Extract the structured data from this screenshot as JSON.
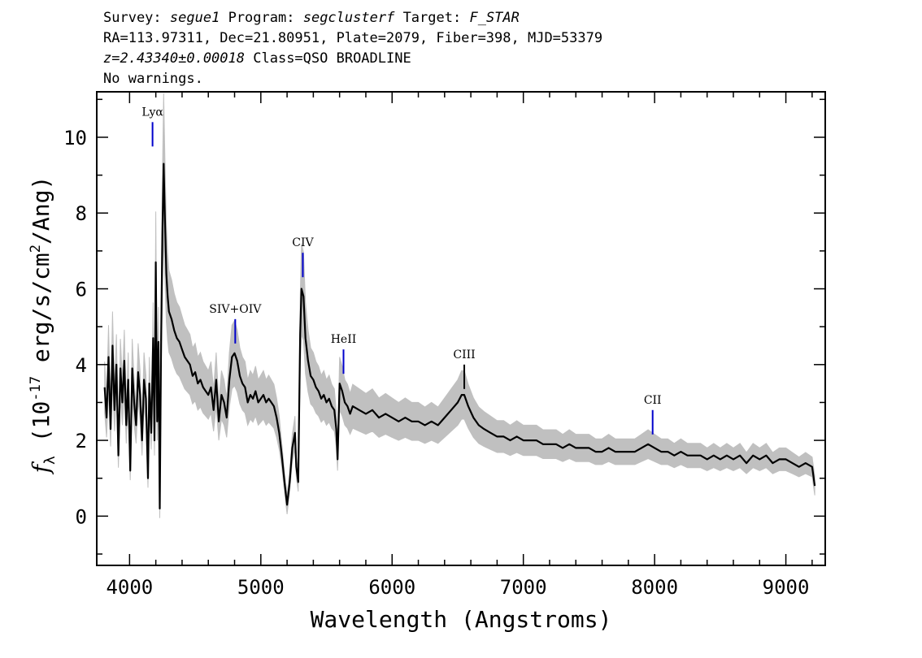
{
  "header": {
    "line1": {
      "survey_label": "Survey:",
      "survey": "segue1",
      "program_label": "Program:",
      "program": "segclusterf",
      "target_label": "Target:",
      "target": "F_STAR"
    },
    "line2": "RA=113.97311, Dec=21.80951, Plate=2079, Fiber=398, MJD=53379",
    "line3": {
      "redshift": "z=2.43340±0.00018",
      "class": "Class=QSO BROADLINE"
    },
    "line4": "No warnings."
  },
  "chart_data": {
    "type": "line",
    "xlabel": "Wavelength (Angstroms)",
    "ylabel": "f_λ (10^-17 erg/s/cm^2/Ang)",
    "xlim": [
      3750,
      9300
    ],
    "ylim": [
      -1.3,
      11.2
    ],
    "xticks": [
      4000,
      5000,
      6000,
      7000,
      8000,
      9000
    ],
    "yticks": [
      0,
      2,
      4,
      6,
      8,
      10
    ],
    "grid": false,
    "series": [
      {
        "role": "flux",
        "color": "#000000",
        "points": [
          [
            3810,
            3.4
          ],
          [
            3825,
            2.6
          ],
          [
            3840,
            4.2
          ],
          [
            3855,
            2.3
          ],
          [
            3870,
            4.5
          ],
          [
            3885,
            2.8
          ],
          [
            3900,
            4.0
          ],
          [
            3915,
            1.6
          ],
          [
            3930,
            3.9
          ],
          [
            3945,
            3.0
          ],
          [
            3960,
            4.1
          ],
          [
            3975,
            2.4
          ],
          [
            3990,
            3.6
          ],
          [
            4005,
            1.2
          ],
          [
            4020,
            3.9
          ],
          [
            4035,
            3.0
          ],
          [
            4050,
            2.4
          ],
          [
            4065,
            3.8
          ],
          [
            4080,
            3.2
          ],
          [
            4095,
            2.0
          ],
          [
            4110,
            3.6
          ],
          [
            4125,
            3.1
          ],
          [
            4140,
            1.0
          ],
          [
            4150,
            3.5
          ],
          [
            4165,
            2.2
          ],
          [
            4180,
            4.7
          ],
          [
            4190,
            2.0
          ],
          [
            4200,
            6.7
          ],
          [
            4210,
            2.5
          ],
          [
            4220,
            4.6
          ],
          [
            4230,
            0.2
          ],
          [
            4240,
            4.5
          ],
          [
            4250,
            7.4
          ],
          [
            4260,
            9.3
          ],
          [
            4270,
            7.8
          ],
          [
            4280,
            6.4
          ],
          [
            4290,
            5.8
          ],
          [
            4300,
            5.4
          ],
          [
            4320,
            5.2
          ],
          [
            4340,
            4.9
          ],
          [
            4360,
            4.7
          ],
          [
            4380,
            4.6
          ],
          [
            4400,
            4.4
          ],
          [
            4420,
            4.2
          ],
          [
            4440,
            4.1
          ],
          [
            4460,
            4.0
          ],
          [
            4480,
            3.7
          ],
          [
            4500,
            3.8
          ],
          [
            4520,
            3.5
          ],
          [
            4540,
            3.6
          ],
          [
            4560,
            3.4
          ],
          [
            4580,
            3.3
          ],
          [
            4600,
            3.2
          ],
          [
            4620,
            3.4
          ],
          [
            4640,
            2.8
          ],
          [
            4660,
            3.6
          ],
          [
            4680,
            2.5
          ],
          [
            4700,
            3.2
          ],
          [
            4720,
            3.0
          ],
          [
            4740,
            2.6
          ],
          [
            4760,
            3.6
          ],
          [
            4780,
            4.2
          ],
          [
            4800,
            4.3
          ],
          [
            4820,
            4.1
          ],
          [
            4840,
            3.7
          ],
          [
            4860,
            3.5
          ],
          [
            4880,
            3.4
          ],
          [
            4900,
            3.0
          ],
          [
            4920,
            3.2
          ],
          [
            4940,
            3.1
          ],
          [
            4960,
            3.3
          ],
          [
            4980,
            3.0
          ],
          [
            5000,
            3.1
          ],
          [
            5020,
            3.2
          ],
          [
            5040,
            3.0
          ],
          [
            5060,
            3.1
          ],
          [
            5080,
            3.0
          ],
          [
            5100,
            2.9
          ],
          [
            5120,
            2.6
          ],
          [
            5140,
            2.2
          ],
          [
            5160,
            1.6
          ],
          [
            5180,
            0.9
          ],
          [
            5200,
            0.3
          ],
          [
            5220,
            0.9
          ],
          [
            5240,
            1.8
          ],
          [
            5260,
            2.2
          ],
          [
            5270,
            1.3
          ],
          [
            5285,
            0.9
          ],
          [
            5300,
            4.8
          ],
          [
            5310,
            6.0
          ],
          [
            5325,
            5.8
          ],
          [
            5340,
            4.7
          ],
          [
            5360,
            4.1
          ],
          [
            5380,
            3.7
          ],
          [
            5400,
            3.6
          ],
          [
            5420,
            3.4
          ],
          [
            5440,
            3.3
          ],
          [
            5460,
            3.1
          ],
          [
            5480,
            3.2
          ],
          [
            5500,
            3.0
          ],
          [
            5520,
            3.1
          ],
          [
            5540,
            2.9
          ],
          [
            5560,
            2.8
          ],
          [
            5575,
            2.3
          ],
          [
            5585,
            1.5
          ],
          [
            5600,
            3.5
          ],
          [
            5620,
            3.3
          ],
          [
            5640,
            3.0
          ],
          [
            5660,
            2.9
          ],
          [
            5680,
            2.7
          ],
          [
            5700,
            2.9
          ],
          [
            5750,
            2.8
          ],
          [
            5800,
            2.7
          ],
          [
            5850,
            2.8
          ],
          [
            5900,
            2.6
          ],
          [
            5950,
            2.7
          ],
          [
            6000,
            2.6
          ],
          [
            6050,
            2.5
          ],
          [
            6100,
            2.6
          ],
          [
            6150,
            2.5
          ],
          [
            6200,
            2.5
          ],
          [
            6250,
            2.4
          ],
          [
            6300,
            2.5
          ],
          [
            6350,
            2.4
          ],
          [
            6400,
            2.6
          ],
          [
            6450,
            2.8
          ],
          [
            6500,
            3.0
          ],
          [
            6530,
            3.2
          ],
          [
            6550,
            3.2
          ],
          [
            6580,
            2.9
          ],
          [
            6620,
            2.6
          ],
          [
            6660,
            2.4
          ],
          [
            6700,
            2.3
          ],
          [
            6750,
            2.2
          ],
          [
            6800,
            2.1
          ],
          [
            6850,
            2.1
          ],
          [
            6900,
            2.0
          ],
          [
            6950,
            2.1
          ],
          [
            7000,
            2.0
          ],
          [
            7050,
            2.0
          ],
          [
            7100,
            2.0
          ],
          [
            7150,
            1.9
          ],
          [
            7200,
            1.9
          ],
          [
            7250,
            1.9
          ],
          [
            7300,
            1.8
          ],
          [
            7350,
            1.9
          ],
          [
            7400,
            1.8
          ],
          [
            7450,
            1.8
          ],
          [
            7500,
            1.8
          ],
          [
            7550,
            1.7
          ],
          [
            7600,
            1.7
          ],
          [
            7650,
            1.8
          ],
          [
            7700,
            1.7
          ],
          [
            7750,
            1.7
          ],
          [
            7800,
            1.7
          ],
          [
            7850,
            1.7
          ],
          [
            7900,
            1.8
          ],
          [
            7950,
            1.9
          ],
          [
            8000,
            1.8
          ],
          [
            8050,
            1.7
          ],
          [
            8100,
            1.7
          ],
          [
            8150,
            1.6
          ],
          [
            8200,
            1.7
          ],
          [
            8250,
            1.6
          ],
          [
            8300,
            1.6
          ],
          [
            8350,
            1.6
          ],
          [
            8400,
            1.5
          ],
          [
            8450,
            1.6
          ],
          [
            8500,
            1.5
          ],
          [
            8550,
            1.6
          ],
          [
            8600,
            1.5
          ],
          [
            8650,
            1.6
          ],
          [
            8700,
            1.4
          ],
          [
            8750,
            1.6
          ],
          [
            8800,
            1.5
          ],
          [
            8850,
            1.6
          ],
          [
            8900,
            1.4
          ],
          [
            8950,
            1.5
          ],
          [
            9000,
            1.5
          ],
          [
            9050,
            1.4
          ],
          [
            9100,
            1.3
          ],
          [
            9150,
            1.4
          ],
          [
            9200,
            1.3
          ],
          [
            9220,
            0.8
          ]
        ]
      },
      {
        "role": "error_envelope",
        "color": "#c0c0c0",
        "relative_width": 0.2
      }
    ],
    "emission_lines": [
      {
        "label": "Lyα",
        "wavelength": 4175,
        "flux": 10.4,
        "color": "#0000cc"
      },
      {
        "label": "SIV+OIV",
        "wavelength": 4805,
        "flux": 5.2,
        "color": "#0000cc"
      },
      {
        "label": "CIV",
        "wavelength": 5320,
        "flux": 6.95,
        "color": "#0000cc"
      },
      {
        "label": "HeII",
        "wavelength": 5630,
        "flux": 4.4,
        "color": "#0000cc"
      },
      {
        "label": "CIII",
        "wavelength": 6550,
        "flux": 4.0,
        "color": "#000000"
      },
      {
        "label": "CII",
        "wavelength": 7985,
        "flux": 2.8,
        "color": "#0000cc"
      }
    ]
  }
}
